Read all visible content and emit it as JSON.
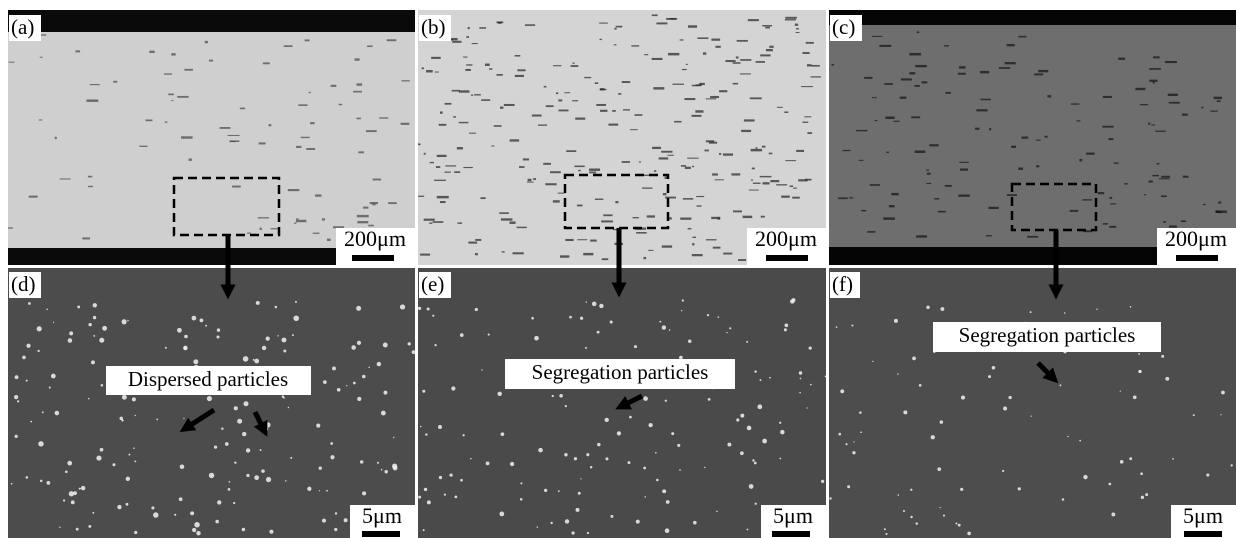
{
  "panels": [
    {
      "label": "(a)",
      "scale_bar": "200μm"
    },
    {
      "label": "(b)",
      "scale_bar": "200μm"
    },
    {
      "label": "(c)",
      "scale_bar": "200μm"
    },
    {
      "label": "(d)",
      "scale_bar": "5μm",
      "annotation": "Dispersed particles"
    },
    {
      "label": "(e)",
      "scale_bar": "5μm",
      "annotation": "Segregation particles"
    },
    {
      "label": "(f)",
      "scale_bar": "5μm",
      "annotation": "Segregation particles"
    }
  ]
}
